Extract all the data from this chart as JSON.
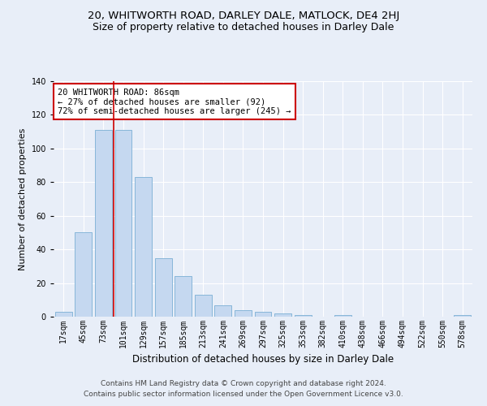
{
  "title1": "20, WHITWORTH ROAD, DARLEY DALE, MATLOCK, DE4 2HJ",
  "title2": "Size of property relative to detached houses in Darley Dale",
  "xlabel": "Distribution of detached houses by size in Darley Dale",
  "ylabel": "Number of detached properties",
  "categories": [
    "17sqm",
    "45sqm",
    "73sqm",
    "101sqm",
    "129sqm",
    "157sqm",
    "185sqm",
    "213sqm",
    "241sqm",
    "269sqm",
    "297sqm",
    "325sqm",
    "353sqm",
    "382sqm",
    "410sqm",
    "438sqm",
    "466sqm",
    "494sqm",
    "522sqm",
    "550sqm",
    "578sqm"
  ],
  "values": [
    3,
    50,
    111,
    111,
    83,
    35,
    24,
    13,
    7,
    4,
    3,
    2,
    1,
    0,
    1,
    0,
    0,
    0,
    0,
    0,
    1
  ],
  "bar_color": "#c5d8f0",
  "bar_edge_color": "#7bafd4",
  "vline_x": 2.5,
  "vline_color": "#cc0000",
  "annotation_text": "20 WHITWORTH ROAD: 86sqm\n← 27% of detached houses are smaller (92)\n72% of semi-detached houses are larger (245) →",
  "annotation_box_color": "#ffffff",
  "annotation_box_edge_color": "#cc0000",
  "ylim": [
    0,
    140
  ],
  "yticks": [
    0,
    20,
    40,
    60,
    80,
    100,
    120,
    140
  ],
  "bg_color": "#e8eef8",
  "plot_bg_color": "#e8eef8",
  "footer1": "Contains HM Land Registry data © Crown copyright and database right 2024.",
  "footer2": "Contains public sector information licensed under the Open Government Licence v3.0.",
  "title1_fontsize": 9.5,
  "title2_fontsize": 9,
  "xlabel_fontsize": 8.5,
  "ylabel_fontsize": 8,
  "tick_fontsize": 7,
  "annotation_fontsize": 7.5,
  "footer_fontsize": 6.5
}
